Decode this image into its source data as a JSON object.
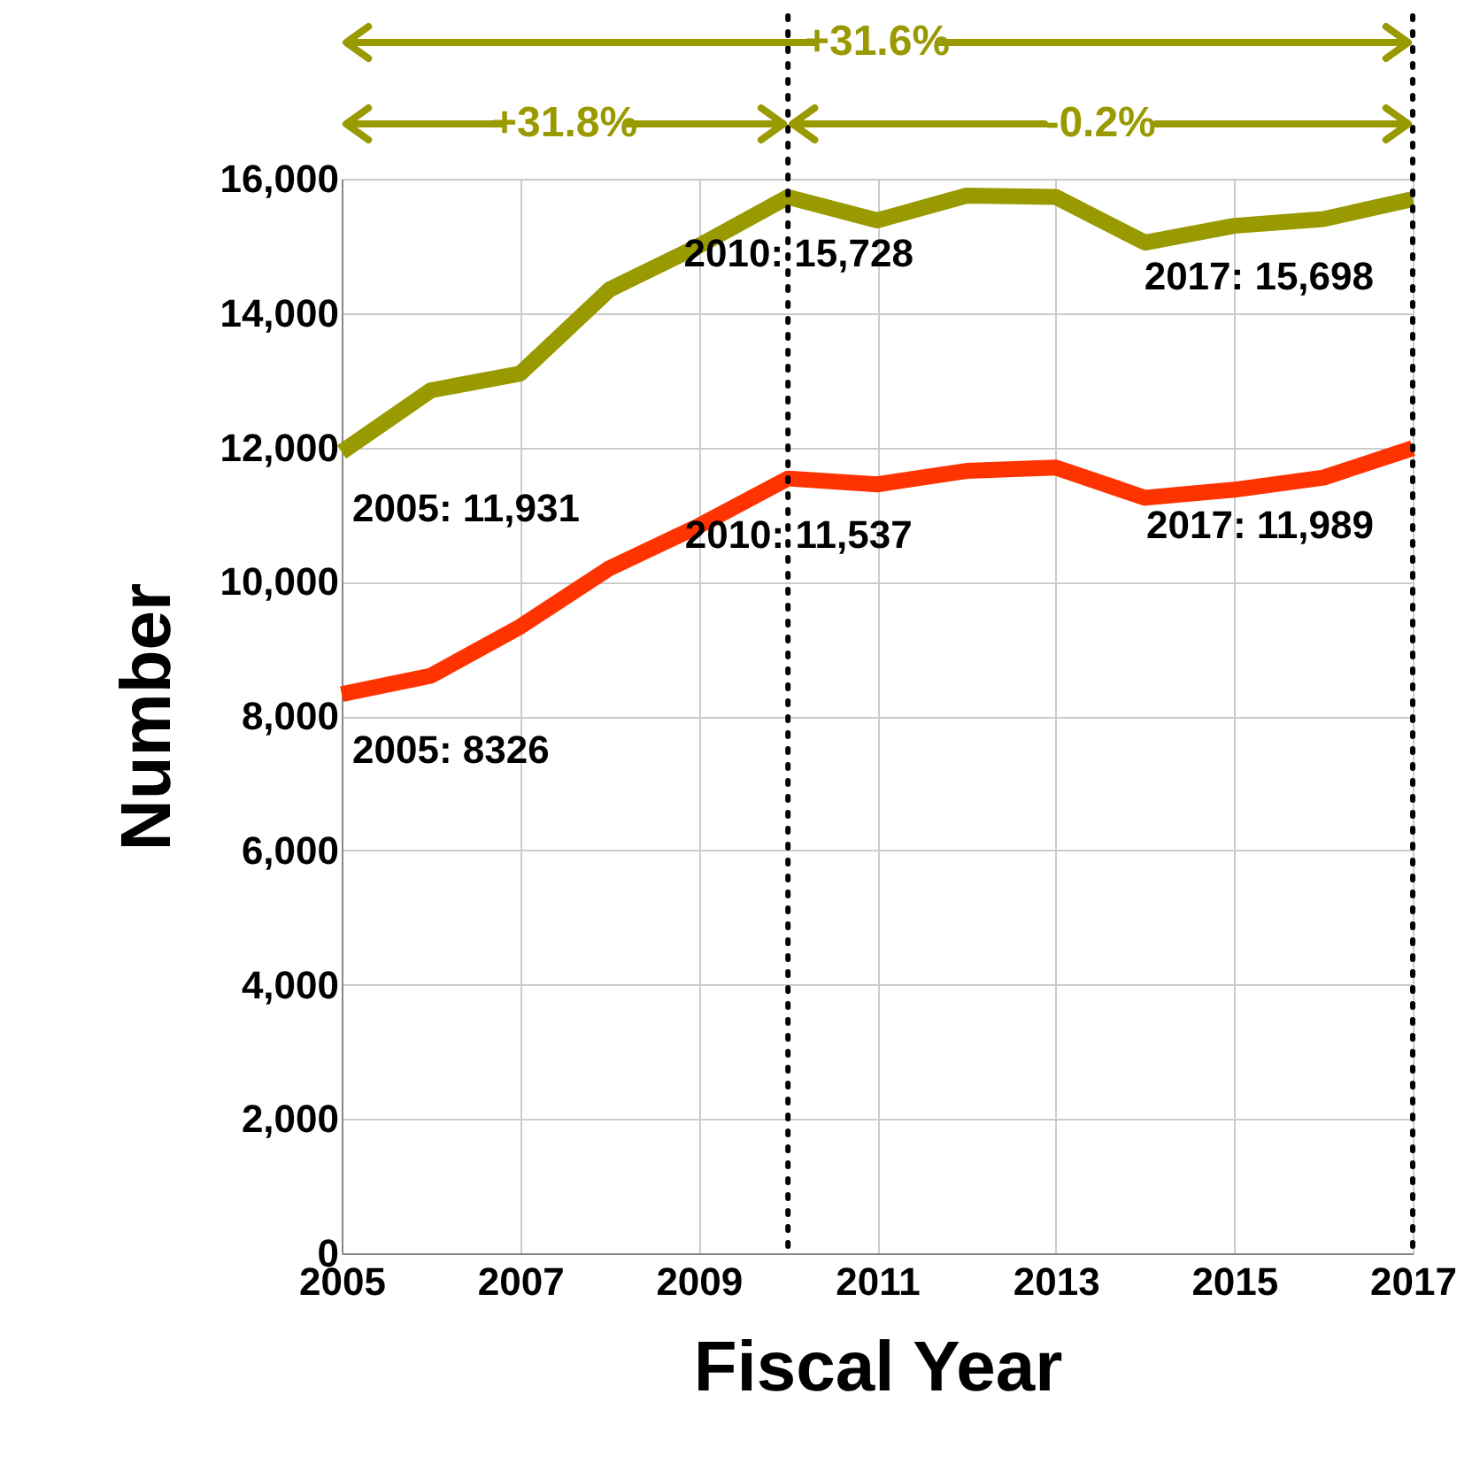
{
  "chart_data": {
    "type": "line",
    "xlabel": "Fiscal Year",
    "ylabel": "Number",
    "x": [
      2005,
      2006,
      2007,
      2008,
      2009,
      2010,
      2011,
      2012,
      2013,
      2014,
      2015,
      2016,
      2017
    ],
    "series": [
      {
        "color": "#999900",
        "values": [
          11931,
          12850,
          13100,
          14350,
          15000,
          15728,
          15380,
          15750,
          15730,
          15050,
          15300,
          15400,
          15698
        ]
      },
      {
        "color": "#ff3300",
        "values": [
          8326,
          8600,
          9330,
          10200,
          10830,
          11537,
          11450,
          11650,
          11700,
          11250,
          11370,
          11550,
          11989
        ]
      }
    ],
    "xlim": [
      2005,
      2017
    ],
    "xticks": [
      2005,
      2007,
      2009,
      2011,
      2013,
      2015,
      2017
    ],
    "ylim": [
      0,
      16000
    ],
    "yticks": [
      0,
      {
        "value": 2000,
        "label": "2,000"
      },
      {
        "value": 4000,
        "label": "4,000"
      },
      {
        "value": 6000,
        "label": "6,000"
      },
      {
        "value": 8000,
        "label": "8,000"
      },
      {
        "value": 10000,
        "label": "10,000"
      },
      {
        "value": 12000,
        "label": "12,000"
      },
      {
        "value": 14000,
        "label": "14,000"
      },
      {
        "value": 16000,
        "label": "16,000"
      }
    ],
    "grid": true,
    "marker": "none",
    "line_style": "solid",
    "ref_lines": [
      {
        "axis": "x",
        "value": 2010,
        "color": "#000000",
        "line_style": "dotted"
      },
      {
        "axis": "x",
        "value": 2017,
        "color": "#000000",
        "line_style": "dotted"
      }
    ],
    "annotations": [
      "+31.6%",
      "+31.8%",
      "-0.2%",
      {
        "text": "2005: 11,931",
        "x": 2005,
        "y": 11931
      },
      {
        "text": "2010: 15,728",
        "x": 2010,
        "y": 15728
      },
      {
        "text": "2017: 15,698",
        "x": 2017,
        "y": 15698
      },
      {
        "text": "2005: 8326",
        "x": 2005,
        "y": 8326
      },
      {
        "text": "2010: 11,537",
        "x": 2010,
        "y": 11537
      },
      {
        "text": "2017: 11,989",
        "x": 2017,
        "y": 11989
      }
    ]
  }
}
